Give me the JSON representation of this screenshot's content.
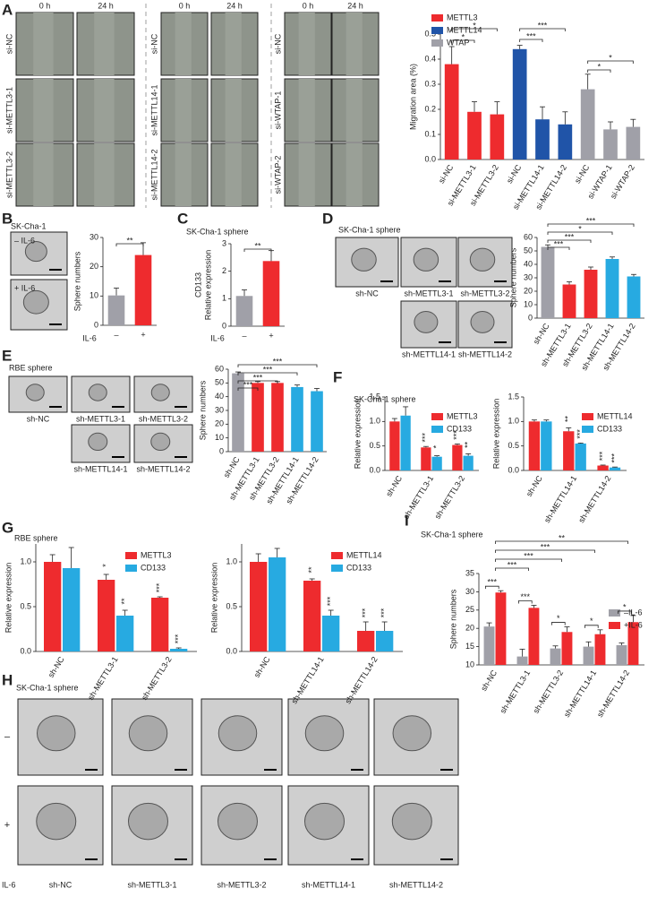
{
  "panels": {
    "A": {
      "letter": "A",
      "time_labels": [
        "0 h",
        "24 h"
      ],
      "rows": [
        [
          "si-NC",
          "si-METTL3-1",
          "si-METTL3-2"
        ],
        [
          "si-NC",
          "si-METTL14-1",
          "si-METTL14-2"
        ],
        [
          "si-NC",
          "si-WTAP-1",
          "si-WTAP-2"
        ]
      ]
    },
    "B": {
      "letter": "B",
      "cell": "SK-Cha-1",
      "conditions": [
        "– IL-6",
        "+ IL-6"
      ]
    },
    "C": {
      "letter": "C"
    },
    "D": {
      "letter": "D",
      "title": "SK-Cha-1  sphere",
      "images": [
        "sh-NC",
        "sh-METTL3-1",
        "sh-METTL3-2",
        "sh-METTL14-1",
        "sh-METTL14-2"
      ]
    },
    "E": {
      "letter": "E",
      "title": "RBE sphere",
      "images": [
        "sh-NC",
        "sh-METTL3-1",
        "sh-METTL3-2",
        "sh-METTL14-1",
        "sh-METTL14-2"
      ]
    },
    "F": {
      "letter": "F",
      "title": "SK-Cha-1  sphere"
    },
    "G": {
      "letter": "G",
      "title": "RBE sphere"
    },
    "H": {
      "letter": "H",
      "title": "SK-Cha-1 sphere",
      "rows": [
        "–",
        "+"
      ],
      "factor": "IL-6",
      "images": [
        "sh-NC",
        "sh-METTL3-1",
        "sh-METTL3-2",
        "sh-METTL14-1",
        "sh-METTL14-2"
      ]
    },
    "I": {
      "letter": "I"
    }
  },
  "chart_data": [
    {
      "type": "bar",
      "ylabel": "Migration area (%)",
      "categories": [
        "si-NC",
        "si-METTL3-1",
        "si-METTL3-2",
        "si-NC",
        "si-METTL14-1",
        "si-METTL14-2",
        "si-NC",
        "si-WTAP-1",
        "si-WTAP-2"
      ],
      "values": [
        0.38,
        0.19,
        0.18,
        0.44,
        0.16,
        0.14,
        0.28,
        0.12,
        0.13
      ],
      "errors": [
        0.07,
        0.04,
        0.05,
        0.015,
        0.05,
        0.05,
        0.06,
        0.03,
        0.03
      ],
      "colors": [
        "#ee2b2e",
        "#ee2b2e",
        "#ee2b2e",
        "#2054a8",
        "#2054a8",
        "#2054a8",
        "#a0a0a8",
        "#a0a0a8",
        "#a0a0a8"
      ],
      "legend": [
        {
          "name": "METTL3",
          "color": "#ee2b2e"
        },
        {
          "name": "METTL14",
          "color": "#2054a8"
        },
        {
          "name": "WTAP",
          "color": "#a0a0a8"
        }
      ],
      "ylim": [
        0,
        0.5
      ],
      "yticks": [
        {
          "value": 0,
          "label": "0.0"
        },
        0.1,
        0.2,
        0.3,
        0.4,
        0.5
      ],
      "annotations": [
        "*",
        "*",
        "***",
        "***",
        "*",
        "*"
      ]
    },
    {
      "type": "bar",
      "ylabel": "Sphere numbers",
      "xlabel": "IL-6",
      "categories": [
        "–",
        "+"
      ],
      "values": [
        10.2,
        24
      ],
      "errors": [
        2.5,
        4.2
      ],
      "colors": [
        "#a0a0a8",
        "#ee2b2e"
      ],
      "ylim": [
        0,
        30
      ],
      "yticks": [
        0,
        10,
        20,
        30
      ],
      "annotations": [
        "**"
      ]
    },
    {
      "type": "bar",
      "title": "SK-Cha-1 sphere",
      "ylabel": [
        "CD133",
        "Relative expression"
      ],
      "xlabel": "IL-6",
      "categories": [
        "–",
        "+"
      ],
      "values": [
        1.1,
        2.37
      ],
      "errors": [
        0.22,
        0.38
      ],
      "colors": [
        "#a0a0a8",
        "#ee2b2e"
      ],
      "ylim": [
        0,
        3
      ],
      "yticks": [
        0,
        1,
        2,
        3
      ],
      "annotations": [
        "**"
      ]
    },
    {
      "type": "bar",
      "ylabel": "Sphere numbers",
      "categories": [
        "sh-NC",
        "sh-METTL3-1",
        "sh-METTL3-2",
        "sh-METTL14-1",
        "sh-METTL14-2"
      ],
      "values": [
        53,
        25,
        36,
        44,
        31
      ],
      "errors": [
        1.5,
        2,
        2,
        1.5,
        1.5
      ],
      "colors": [
        "#a0a0a8",
        "#ee2b2e",
        "#ee2b2e",
        "#27aae1",
        "#27aae1"
      ],
      "ylim": [
        0,
        60
      ],
      "yticks": [
        0,
        10,
        20,
        30,
        40,
        50,
        60
      ],
      "annotations": [
        "***",
        "***",
        "*",
        "***"
      ]
    },
    {
      "type": "bar",
      "ylabel": "Sphere numbers",
      "categories": [
        "sh-NC",
        "sh-METTL3-1",
        "sh-METTL3-2",
        "sh-METTL14-1",
        "sh-METTL14-2"
      ],
      "values": [
        57,
        50,
        50,
        47,
        44
      ],
      "errors": [
        1,
        1,
        1,
        1.5,
        2
      ],
      "colors": [
        "#a0a0a8",
        "#ee2b2e",
        "#ee2b2e",
        "#27aae1",
        "#27aae1"
      ],
      "ylim": [
        0,
        60
      ],
      "yticks": [
        0,
        10,
        20,
        30,
        40,
        50,
        60
      ],
      "annotations": [
        "***",
        "***",
        "***",
        "***"
      ]
    },
    {
      "type": "bar",
      "ylabel": "Relative expression",
      "categories": [
        "sh-NC",
        "sh-METTL3-1",
        "sh-METTL3-2"
      ],
      "series": [
        {
          "name": "METTL3",
          "color": "#ee2b2e",
          "values": [
            1.0,
            0.47,
            0.52
          ],
          "errors": [
            0.06,
            0.02,
            0.02
          ],
          "annotations": [
            null,
            "***",
            "***"
          ]
        },
        {
          "name": "CD133",
          "color": "#27aae1",
          "values": [
            1.12,
            0.28,
            0.3
          ],
          "errors": [
            0.18,
            0.02,
            0.04
          ],
          "annotations": [
            null,
            "*",
            "**"
          ]
        }
      ],
      "ylim": [
        0,
        1.5
      ],
      "yticks": [
        {
          "value": 0,
          "label": "0.0"
        },
        0.5,
        {
          "value": 1,
          "label": "1.0"
        },
        1.5
      ]
    },
    {
      "type": "bar",
      "ylabel": "Relative expression",
      "categories": [
        "sh-NC",
        "sh-METTL14-1",
        "sh-METTL14-2"
      ],
      "series": [
        {
          "name": "METTL14",
          "color": "#ee2b2e",
          "values": [
            1.0,
            0.8,
            0.1
          ],
          "errors": [
            0.03,
            0.07,
            0.01
          ],
          "annotations": [
            null,
            "**",
            "***"
          ]
        },
        {
          "name": "CD133",
          "color": "#27aae1",
          "values": [
            1.0,
            0.55,
            0.06
          ],
          "errors": [
            0.03,
            0.01,
            0.01
          ],
          "annotations": [
            null,
            "***",
            "***"
          ]
        }
      ],
      "ylim": [
        0,
        1.5
      ],
      "yticks": [
        {
          "value": 0,
          "label": "0.0"
        },
        0.5,
        {
          "value": 1,
          "label": "1.0"
        },
        1.5
      ]
    },
    {
      "type": "bar",
      "ylabel": "Relative expression",
      "categories": [
        "sh-NC",
        "sh-METTL3-1",
        "sh-METTL3-2"
      ],
      "series": [
        {
          "name": "METTL3",
          "color": "#ee2b2e",
          "values": [
            1.0,
            0.8,
            0.6
          ],
          "errors": [
            0.08,
            0.06,
            0.01
          ],
          "annotations": [
            null,
            "*",
            "***"
          ]
        },
        {
          "name": "CD133",
          "color": "#27aae1",
          "values": [
            0.93,
            0.4,
            0.03
          ],
          "errors": [
            0.23,
            0.06,
            0.01
          ],
          "annotations": [
            null,
            "**",
            "***"
          ]
        }
      ],
      "ylim": [
        0,
        1.2
      ],
      "yticks": [
        {
          "value": 0,
          "label": "0.0"
        },
        0.5,
        {
          "value": 1,
          "label": "1.0"
        }
      ]
    },
    {
      "type": "bar",
      "ylabel": "Relative expression",
      "categories": [
        "sh-NC",
        "sh-METTL14-1",
        "sh-METTL14-2"
      ],
      "series": [
        {
          "name": "METTL14",
          "color": "#ee2b2e",
          "values": [
            1.0,
            0.79,
            0.23
          ],
          "errors": [
            0.09,
            0.02,
            0.1
          ],
          "annotations": [
            null,
            "**",
            "***"
          ]
        },
        {
          "name": "CD133",
          "color": "#27aae1",
          "values": [
            1.05,
            0.4,
            0.23
          ],
          "errors": [
            0.1,
            0.06,
            0.1
          ],
          "annotations": [
            null,
            "***",
            "***"
          ]
        }
      ],
      "ylim": [
        0,
        1.2
      ],
      "yticks": [
        {
          "value": 0,
          "label": "0.0"
        },
        0.5,
        {
          "value": 1,
          "label": "1.0"
        }
      ]
    },
    {
      "type": "bar",
      "title": "SK-Cha-1 sphere",
      "ylabel": "Sphere numbers",
      "categories": [
        "sh-NC",
        "sh-METTL3-1",
        "sh-METTL3-2",
        "sh-METTL14-1",
        "sh-METTL14-2"
      ],
      "series": [
        {
          "name": "–IL-6",
          "color": "#a0a0a8",
          "values": [
            20.5,
            12.3,
            14.5,
            15,
            15.4
          ],
          "errors": [
            1,
            2,
            0.7,
            1.3,
            0.6
          ]
        },
        {
          "name": "+IL-6",
          "color": "#ee2b2e",
          "values": [
            29.8,
            25.6,
            19,
            18.4,
            21.7
          ],
          "errors": [
            0.5,
            0.7,
            1.4,
            1.2,
            1.8
          ]
        }
      ],
      "pair_annotations": [
        "***",
        "***",
        "*",
        "*",
        "*"
      ],
      "ylim": [
        10,
        35
      ],
      "yticks": [
        10,
        15,
        20,
        25,
        30,
        35
      ],
      "annotations": [
        "***",
        "***",
        "***",
        "**"
      ]
    }
  ]
}
